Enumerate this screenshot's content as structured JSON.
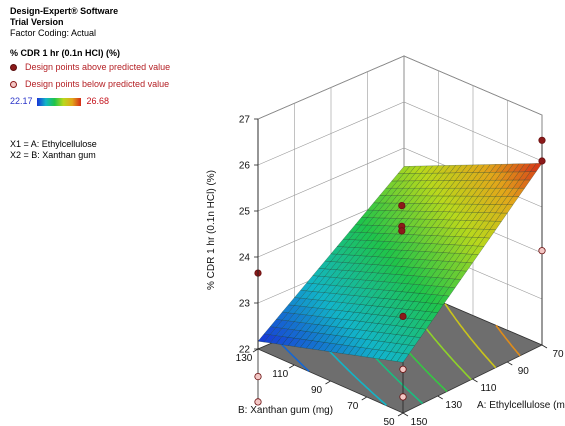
{
  "header": {
    "software": "Design-Expert® Software",
    "version": "Trial Version",
    "coding": "Factor Coding: Actual"
  },
  "legend": {
    "response": "% CDR 1 hr (0.1n HCl) (%)",
    "above": "Design points above predicted value",
    "below": "Design points below predicted value",
    "scale_min": "22.17",
    "scale_max": "26.68",
    "x1": "X1 = A: Ethylcellulose",
    "x2": "X2 = B: Xanthan gum",
    "colors": {
      "above": "#8b1a1a",
      "below": "#f3c7c5",
      "low": "#1833d8",
      "high": "#d42a18"
    }
  },
  "chart_data": {
    "type": "surface",
    "zlabel": "% CDR 1 hr (0.1n HCl) (%)",
    "xlabel": "A: Ethylcellulose (mg)",
    "ylabel": "B: Xanthan gum (mg)",
    "x_ticks": [
      "150",
      "130",
      "110",
      "90",
      "70"
    ],
    "y_ticks": [
      "50",
      "70",
      "90",
      "110",
      "130"
    ],
    "z_ticks": [
      "22",
      "23",
      "24",
      "25",
      "26",
      "27"
    ],
    "xlim": [
      70,
      150
    ],
    "ylim": [
      50,
      130
    ],
    "zlim": [
      22,
      27
    ],
    "surface_corners": [
      {
        "a": 70,
        "b": 50,
        "z": 25.95
      },
      {
        "a": 150,
        "b": 50,
        "z": 23.1
      },
      {
        "a": 150,
        "b": 130,
        "z": 22.17
      },
      {
        "a": 70,
        "b": 130,
        "z": 24.6
      }
    ],
    "design_points": [
      {
        "a": 150,
        "b": 50,
        "z": 24.1,
        "type": "above"
      },
      {
        "a": 150,
        "b": 50,
        "z": 22.95,
        "type": "below"
      },
      {
        "a": 150,
        "b": 50,
        "z": 22.35,
        "type": "below"
      },
      {
        "a": 110,
        "b": 90,
        "z": 25.1,
        "type": "above"
      },
      {
        "a": 110,
        "b": 90,
        "z": 24.65,
        "type": "above"
      },
      {
        "a": 110,
        "b": 90,
        "z": 24.55,
        "type": "above"
      },
      {
        "a": 70,
        "b": 50,
        "z": 26.45,
        "type": "above"
      },
      {
        "a": 70,
        "b": 50,
        "z": 26.0,
        "type": "above"
      },
      {
        "a": 70,
        "b": 50,
        "z": 24.05,
        "type": "below"
      },
      {
        "a": 150,
        "b": 130,
        "z": 23.65,
        "type": "above"
      },
      {
        "a": 150,
        "b": 130,
        "z": 21.4,
        "type": "below"
      },
      {
        "a": 150,
        "b": 130,
        "z": 20.85,
        "type": "below"
      }
    ]
  }
}
